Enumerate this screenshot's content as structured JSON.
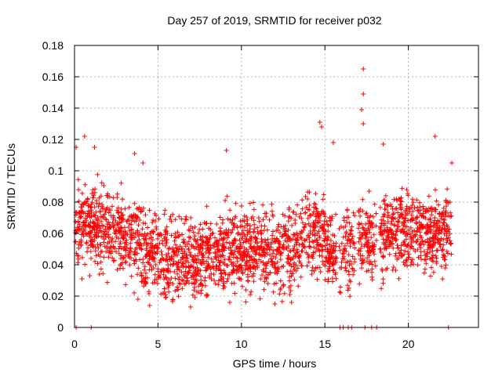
{
  "chart_data": {
    "type": "scatter",
    "title": "Day 257 of 2019, SRMTID for receiver p032",
    "xlabel": "GPS time / hours",
    "ylabel": "SRMTID / TECUs",
    "xlim": [
      0,
      24.2
    ],
    "ylim": [
      0,
      0.18
    ],
    "x_ticks": [
      0,
      5,
      10,
      15,
      20
    ],
    "y_ticks": [
      0,
      0.02,
      0.04,
      0.06,
      0.08,
      0.1,
      0.12,
      0.14,
      0.16,
      0.18
    ],
    "x_tick_labels": [
      "0",
      "5",
      "10",
      "15",
      "20"
    ],
    "y_tick_labels": [
      "0",
      "0.02",
      "0.04",
      "0.06",
      "0.08",
      "0.1",
      "0.12",
      "0.14",
      "0.16",
      "0.18"
    ],
    "grid": true,
    "marker": "+",
    "color": "#ff0000",
    "series": [
      {
        "name": "SRMTID",
        "notable_points": [
          {
            "x": 0.1,
            "y": 0.115
          },
          {
            "x": 0.6,
            "y": 0.122
          },
          {
            "x": 1.2,
            "y": 0.115
          },
          {
            "x": 3.6,
            "y": 0.111
          },
          {
            "x": 4.1,
            "y": 0.105
          },
          {
            "x": 9.1,
            "y": 0.113
          },
          {
            "x": 14.7,
            "y": 0.131
          },
          {
            "x": 14.8,
            "y": 0.128
          },
          {
            "x": 15.5,
            "y": 0.118
          },
          {
            "x": 17.3,
            "y": 0.165
          },
          {
            "x": 17.3,
            "y": 0.149
          },
          {
            "x": 17.2,
            "y": 0.139
          },
          {
            "x": 17.3,
            "y": 0.13
          },
          {
            "x": 18.5,
            "y": 0.117
          },
          {
            "x": 21.6,
            "y": 0.122
          },
          {
            "x": 22.6,
            "y": 0.105
          },
          {
            "x": 3.8,
            "y": 0.018
          },
          {
            "x": 4.5,
            "y": 0.014
          },
          {
            "x": 12.0,
            "y": 0.015
          },
          {
            "x": 13.0,
            "y": 0.016
          },
          {
            "x": 9.3,
            "y": 0.016
          }
        ],
        "zero_points_x": [
          0.1,
          1.0,
          15.9,
          16.1,
          16.4,
          16.6,
          17.4,
          17.8,
          18.1,
          22.4
        ]
      }
    ]
  }
}
